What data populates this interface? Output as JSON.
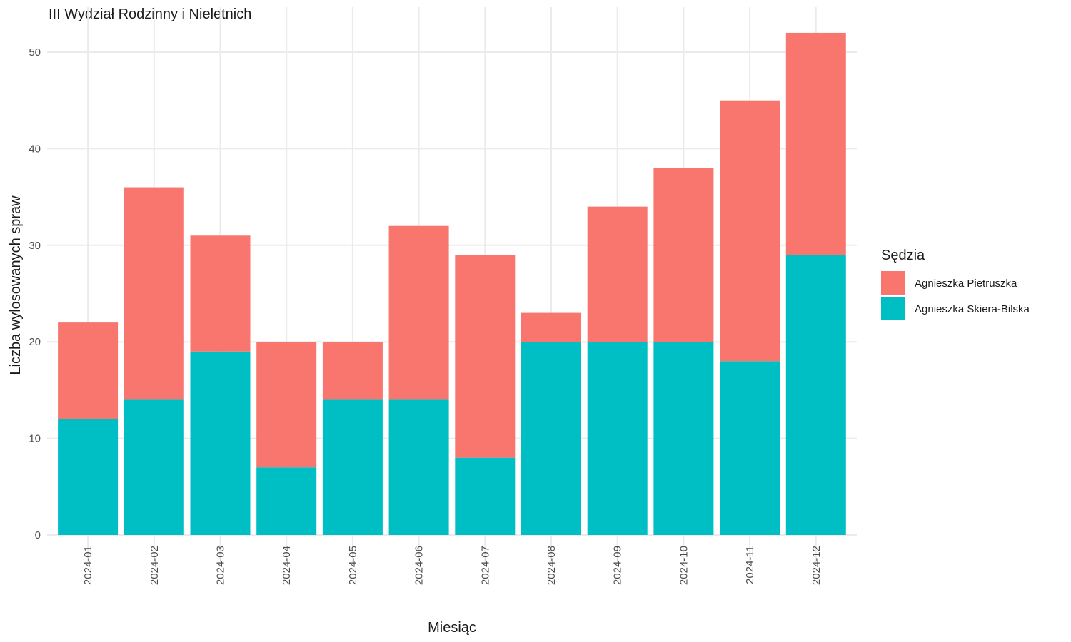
{
  "chart_data": {
    "type": "bar",
    "stacked": true,
    "title": "III Wydział Rodzinny i Nieletnich",
    "xlabel": "Miesiąc",
    "ylabel": "Liczba wylosowanych spraw",
    "ylim": [
      0,
      52
    ],
    "y_ticks": [
      "0",
      "10",
      "20",
      "30",
      "40",
      "50"
    ],
    "grid": true,
    "legend_position": "right",
    "legend_title": "Sędzia",
    "categories": [
      "2024-01",
      "2024-02",
      "2024-03",
      "2024-04",
      "2024-05",
      "2024-06",
      "2024-07",
      "2024-08",
      "2024-09",
      "2024-10",
      "2024-11",
      "2024-12"
    ],
    "series": [
      {
        "name": "Agnieszka Pietruszka",
        "color": "#F8766D",
        "values": [
          10,
          22,
          12,
          13,
          6,
          18,
          21,
          3,
          14,
          18,
          27,
          23
        ]
      },
      {
        "name": "Agnieszka Skiera-Bilska",
        "color": "#00BFC4",
        "values": [
          12,
          14,
          19,
          7,
          14,
          14,
          8,
          20,
          20,
          20,
          18,
          29
        ]
      }
    ]
  }
}
